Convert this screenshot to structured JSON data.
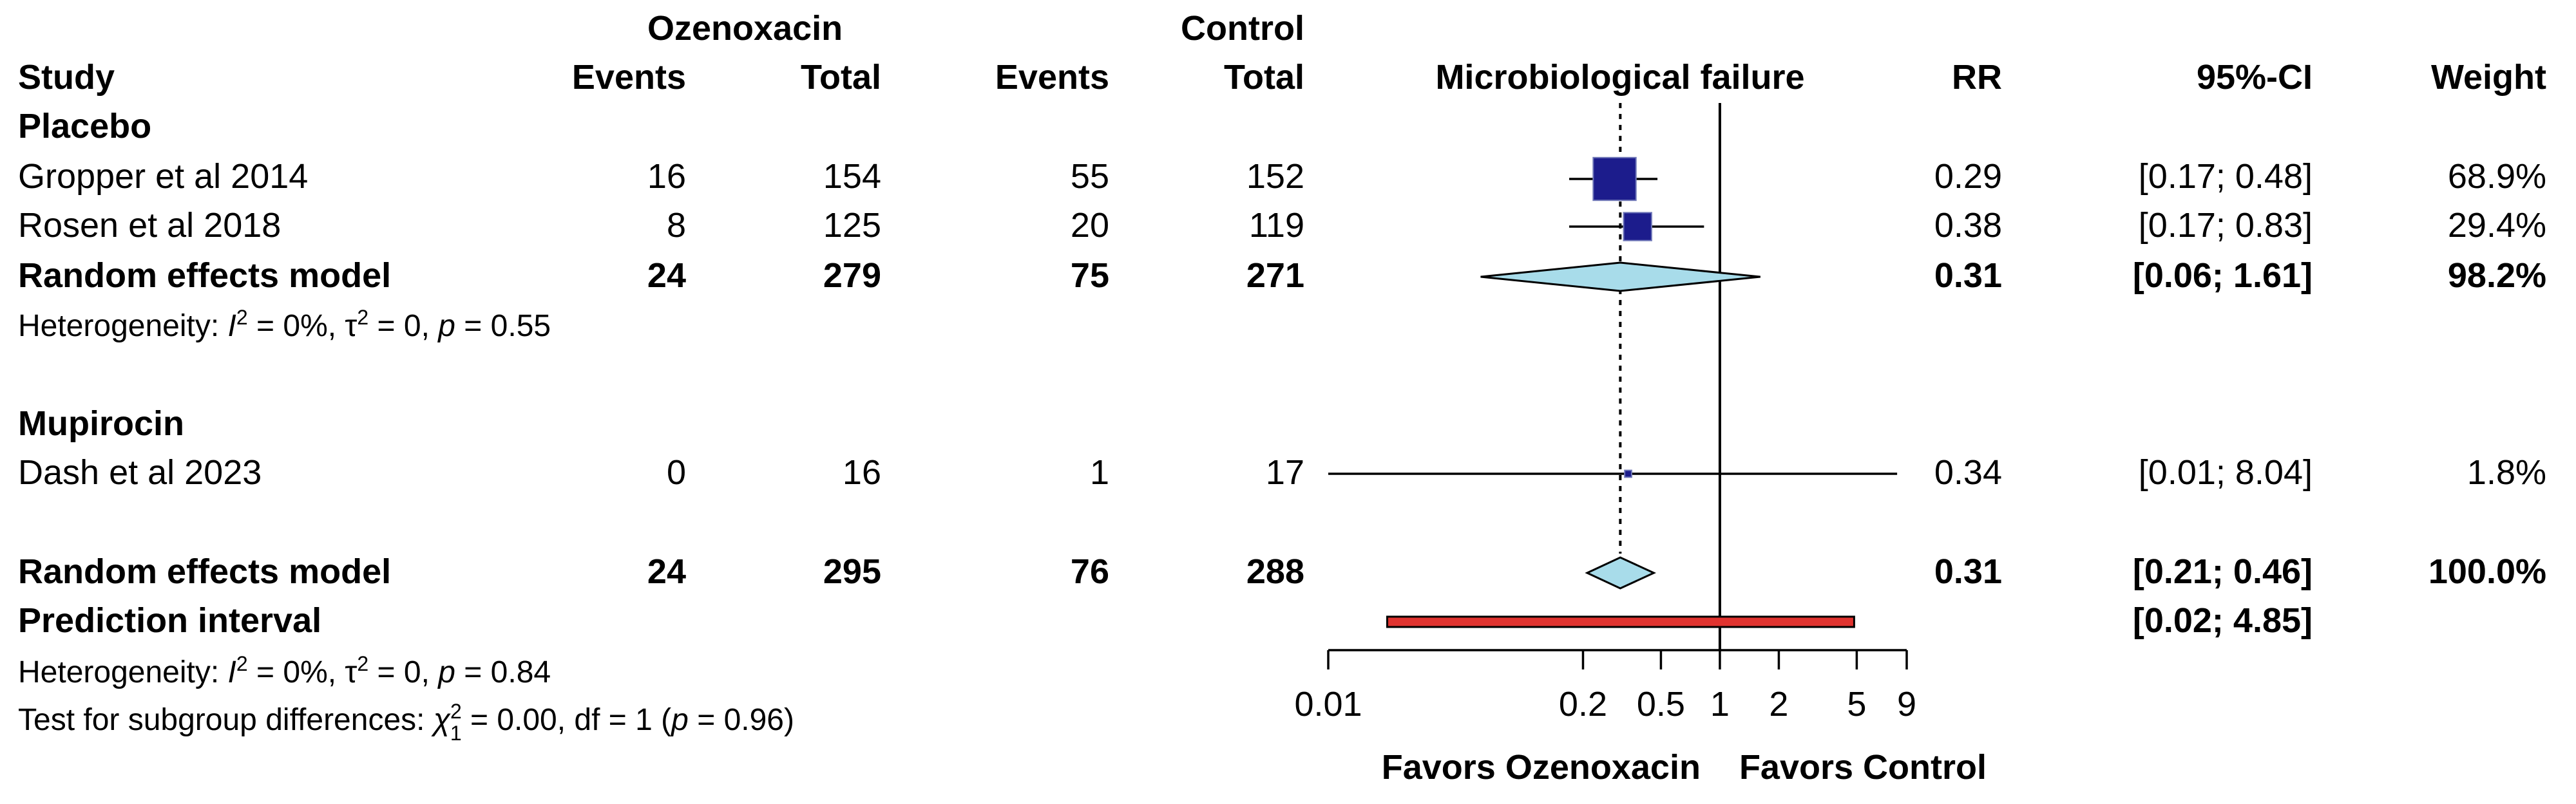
{
  "header": {
    "group_top_left": "Ozenoxacin",
    "group_top_right": "Control",
    "col_study": "Study",
    "col_events_exp": "Events",
    "col_total_exp": "Total",
    "col_events_ctl": "Events",
    "col_total_ctl": "Total",
    "col_plot": "Microbiological failure",
    "col_rr": "RR",
    "col_ci": "95%-CI",
    "col_weight": "Weight"
  },
  "subgroups": [
    {
      "label": "Placebo",
      "studies": [
        {
          "study": "Gropper et al 2014",
          "events_exp": "16",
          "total_exp": "154",
          "events_ctl": "55",
          "total_ctl": "152",
          "rr": "0.29",
          "ci": "[0.17; 0.48]",
          "weight": "68.9%"
        },
        {
          "study": "Rosen et al 2018",
          "events_exp": "8",
          "total_exp": "125",
          "events_ctl": "20",
          "total_ctl": "119",
          "rr": "0.38",
          "ci": "[0.17; 0.83]",
          "weight": "29.4%"
        }
      ],
      "model": {
        "label": "Random effects model",
        "events_exp": "24",
        "total_exp": "279",
        "events_ctl": "75",
        "total_ctl": "271",
        "rr": "0.31",
        "ci": "[0.06; 1.61]",
        "weight": "98.2%"
      },
      "heterogeneity": {
        "prefix": "Heterogeneity: ",
        "i2": "0%",
        "tau2": "0",
        "p": "0.55"
      }
    },
    {
      "label": "Mupirocin",
      "studies": [
        {
          "study": "Dash et al 2023",
          "events_exp": "0",
          "total_exp": "16",
          "events_ctl": "1",
          "total_ctl": "17",
          "rr": "0.34",
          "ci": "[0.01; 8.04]",
          "weight": "1.8%"
        }
      ]
    }
  ],
  "overall": {
    "model": {
      "label": "Random effects model",
      "events_exp": "24",
      "total_exp": "295",
      "events_ctl": "76",
      "total_ctl": "288",
      "rr": "0.31",
      "ci": "[0.21; 0.46]",
      "weight": "100.0%"
    },
    "prediction": {
      "label": "Prediction interval",
      "ci": "[0.02; 4.85]"
    },
    "heterogeneity": {
      "prefix": "Heterogeneity: ",
      "i2": "0%",
      "tau2": "0",
      "p": "0.84"
    },
    "subgroup_test": {
      "prefix": "Test for subgroup differences: ",
      "chi_sub": "1",
      "chi2": "0.00",
      "df": "1",
      "p": "0.96"
    }
  },
  "chart_data": {
    "type": "forest",
    "x_scale": "log",
    "xlim": [
      0.01,
      9
    ],
    "ticks": [
      "0.01",
      "0.2",
      "0.5",
      "1",
      "2",
      "5",
      "9"
    ],
    "null_value": 1,
    "pooled_estimate": 0.31,
    "favors_left": "Favors Ozenoxacin",
    "favors_right": "Favors Control",
    "colors": {
      "square": "#1c1c8c",
      "diamond": "#a8dcea",
      "prediction": "#e0332f"
    },
    "studies": [
      {
        "name": "Gropper et al 2014",
        "rr": 0.29,
        "lo": 0.17,
        "hi": 0.48,
        "weight": 68.9
      },
      {
        "name": "Rosen et al 2018",
        "rr": 0.38,
        "lo": 0.17,
        "hi": 0.83,
        "weight": 29.4
      },
      {
        "name": "Dash et al 2023",
        "rr": 0.34,
        "lo": 0.01,
        "hi": 8.04,
        "weight": 1.8
      }
    ],
    "subgroup_diamonds": [
      {
        "name": "Placebo random effects model",
        "rr": 0.31,
        "lo": 0.06,
        "hi": 1.61
      }
    ],
    "overall_diamond": {
      "rr": 0.31,
      "lo": 0.21,
      "hi": 0.46
    },
    "prediction_interval": {
      "lo": 0.02,
      "hi": 4.85
    }
  }
}
